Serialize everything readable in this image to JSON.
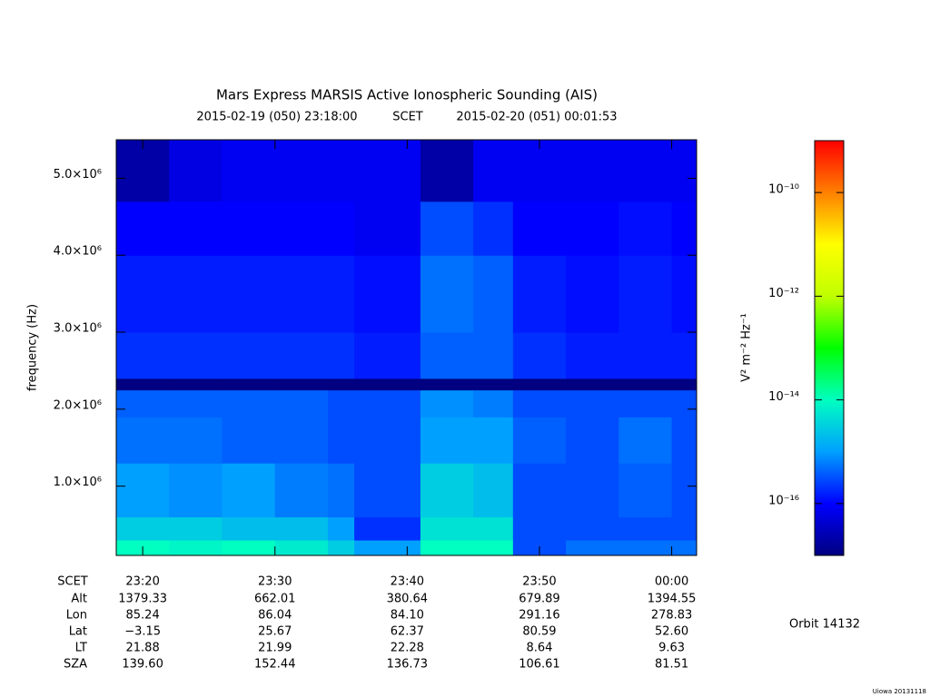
{
  "chart_data": {
    "type": "heatmap",
    "title": "Mars Express MARSIS Active Ionospheric Sounding (AIS)",
    "subtitle_start": "2015-02-19 (050) 23:18:00",
    "subtitle_mid": "SCET",
    "subtitle_end": "2015-02-20 (051) 00:01:53",
    "ylabel": "frequency (Hz)",
    "colorbar_label": "V² m⁻² Hz⁻¹",
    "orbit": "Orbit 14132",
    "credit": "Uiowa 20131118",
    "xlim": [
      "2015-02-19T23:18:00",
      "2015-02-20T00:01:53"
    ],
    "xticks": [
      {
        "value": "2015-02-19T23:20:00",
        "label": "23:20"
      },
      {
        "value": "2015-02-19T23:30:00",
        "label": "23:30"
      },
      {
        "value": "2015-02-19T23:40:00",
        "label": "23:40"
      },
      {
        "value": "2015-02-19T23:50:00",
        "label": "23:50"
      },
      {
        "value": "2015-02-20T00:00:00",
        "label": "00:00"
      }
    ],
    "ylim": [
      100000,
      5500000
    ],
    "yticks": [
      {
        "value": 1000000,
        "label": "1.0×10⁶"
      },
      {
        "value": 2000000,
        "label": "2.0×10⁶"
      },
      {
        "value": 3000000,
        "label": "3.0×10⁶"
      },
      {
        "value": 4000000,
        "label": "4.0×10⁶"
      },
      {
        "value": 5000000,
        "label": "5.0×10⁶"
      }
    ],
    "zlim": [
      1e-17,
      1e-09
    ],
    "log_z": true,
    "zticks": [
      {
        "value": 1e-16,
        "label": "10⁻¹⁶"
      },
      {
        "value": 1e-14,
        "label": "10⁻¹⁴"
      },
      {
        "value": 1e-12,
        "label": "10⁻¹²"
      },
      {
        "value": 1e-10,
        "label": "10⁻¹⁰"
      }
    ],
    "colormap": [
      "#000080",
      "#0000ff",
      "#00a0ff",
      "#00ffc0",
      "#00ff00",
      "#c0ff00",
      "#ffff00",
      "#ff8000",
      "#ff0000"
    ],
    "x_bins": [
      "2015-02-19T23:18:00",
      "2015-02-19T23:22:00",
      "2015-02-19T23:26:00",
      "2015-02-19T23:30:00",
      "2015-02-19T23:34:00",
      "2015-02-19T23:36:00",
      "2015-02-19T23:41:00",
      "2015-02-19T23:45:00",
      "2015-02-19T23:48:00",
      "2015-02-19T23:52:00",
      "2015-02-19T23:56:00",
      "2015-02-20T00:00:00",
      "2015-02-20T00:01:53"
    ],
    "y_bins": [
      100000,
      300000,
      600000,
      1300000,
      1900000,
      2250000,
      2400000,
      3000000,
      4000000,
      4700000,
      5500000
    ],
    "z": [
      [
        1e-14,
        8e-15,
        1e-14,
        6e-15,
        3e-15,
        1e-15,
        1e-14,
        1e-14,
        3e-16,
        5e-16,
        5e-16,
        5e-16
      ],
      [
        3e-15,
        3e-15,
        2e-15,
        2e-15,
        1e-15,
        2e-16,
        5e-15,
        5e-15,
        3e-16,
        3e-16,
        3e-16,
        3e-16
      ],
      [
        1e-15,
        8e-16,
        1e-15,
        6e-16,
        5e-16,
        3e-16,
        3e-15,
        2e-15,
        3e-16,
        3e-16,
        4e-16,
        3e-16
      ],
      [
        5e-16,
        5e-16,
        4e-16,
        4e-16,
        3e-16,
        3e-16,
        1e-15,
        1e-15,
        4e-16,
        3e-16,
        5e-16,
        3e-16
      ],
      [
        4e-16,
        4e-16,
        4e-16,
        4e-16,
        3e-16,
        3e-16,
        8e-16,
        6e-16,
        3e-16,
        3e-16,
        3e-16,
        3e-16
      ],
      [
        1e-17,
        1e-17,
        1e-17,
        1e-17,
        1e-17,
        1e-17,
        1e-17,
        1e-17,
        1e-17,
        1e-17,
        1e-17,
        1e-17
      ],
      [
        2e-16,
        2e-16,
        2e-16,
        2e-16,
        2e-16,
        1.5e-16,
        4e-16,
        4e-16,
        2e-16,
        1.5e-16,
        1.5e-16,
        1.5e-16
      ],
      [
        1.5e-16,
        1.5e-16,
        1.5e-16,
        1.5e-16,
        1.5e-16,
        1.2e-16,
        5e-16,
        4e-16,
        1.5e-16,
        1.2e-16,
        1.5e-16,
        1.2e-16
      ],
      [
        1e-16,
        1e-16,
        1e-16,
        1e-16,
        1e-16,
        8e-17,
        3e-16,
        2e-16,
        1e-16,
        1e-16,
        1.2e-16,
        1e-16
      ],
      [
        2e-17,
        6e-17,
        8e-17,
        8e-17,
        8e-17,
        8e-17,
        2e-17,
        8e-17,
        8e-17,
        8e-17,
        8e-17,
        8e-17
      ]
    ]
  },
  "ephemeris": {
    "header": "SCET",
    "rows": [
      {
        "label": "Alt",
        "values": [
          "1379.33",
          "662.01",
          "380.64",
          "679.89",
          "1394.55"
        ]
      },
      {
        "label": "Lon",
        "values": [
          "85.24",
          "86.04",
          "84.10",
          "291.16",
          "278.83"
        ]
      },
      {
        "label": "Lat",
        "values": [
          "−3.15",
          "25.67",
          "62.37",
          "80.59",
          "52.60"
        ]
      },
      {
        "label": "LT",
        "values": [
          "21.88",
          "21.99",
          "22.28",
          "8.64",
          "9.63"
        ]
      },
      {
        "label": "SZA",
        "values": [
          "139.60",
          "152.44",
          "136.73",
          "106.61",
          "81.51"
        ]
      }
    ]
  }
}
